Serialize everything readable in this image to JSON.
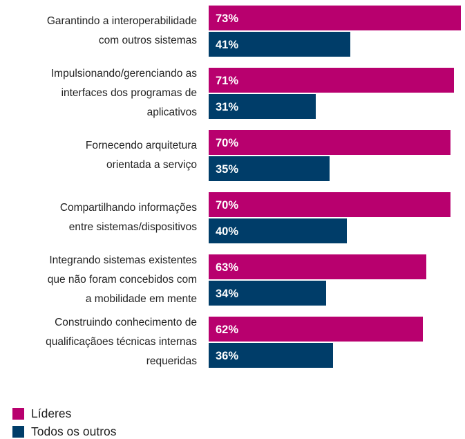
{
  "chart_data": {
    "type": "bar",
    "orientation": "horizontal",
    "categories": [
      "Garantindo a interoperabilidade\ncom outros sistemas",
      "Impulsionando/gerenciando as\ninterfaces dos programas de\naplicativos",
      "Fornecendo arquitetura\norientada a serviço",
      "Compartilhando informações\nentre sistemas/dispositivos",
      "Integrando sistemas existentes\nque não foram concebidos com\na mobilidade em mente",
      "Construindo conhecimento de\nqualificaçãoes técnicas internas\nrequeridas"
    ],
    "series": [
      {
        "name": "Líderes",
        "color": "#b8006e",
        "values": [
          73,
          71,
          70,
          70,
          63,
          62
        ],
        "value_labels": [
          "73%",
          "71%",
          "70%",
          "70%",
          "63%",
          "62%"
        ]
      },
      {
        "name": "Todos os outros",
        "color": "#003d69",
        "values": [
          41,
          31,
          35,
          40,
          34,
          36
        ],
        "value_labels": [
          "41%",
          "31%",
          "35%",
          "40%",
          "34%",
          "36%"
        ]
      }
    ],
    "legend": "bottom-left"
  }
}
